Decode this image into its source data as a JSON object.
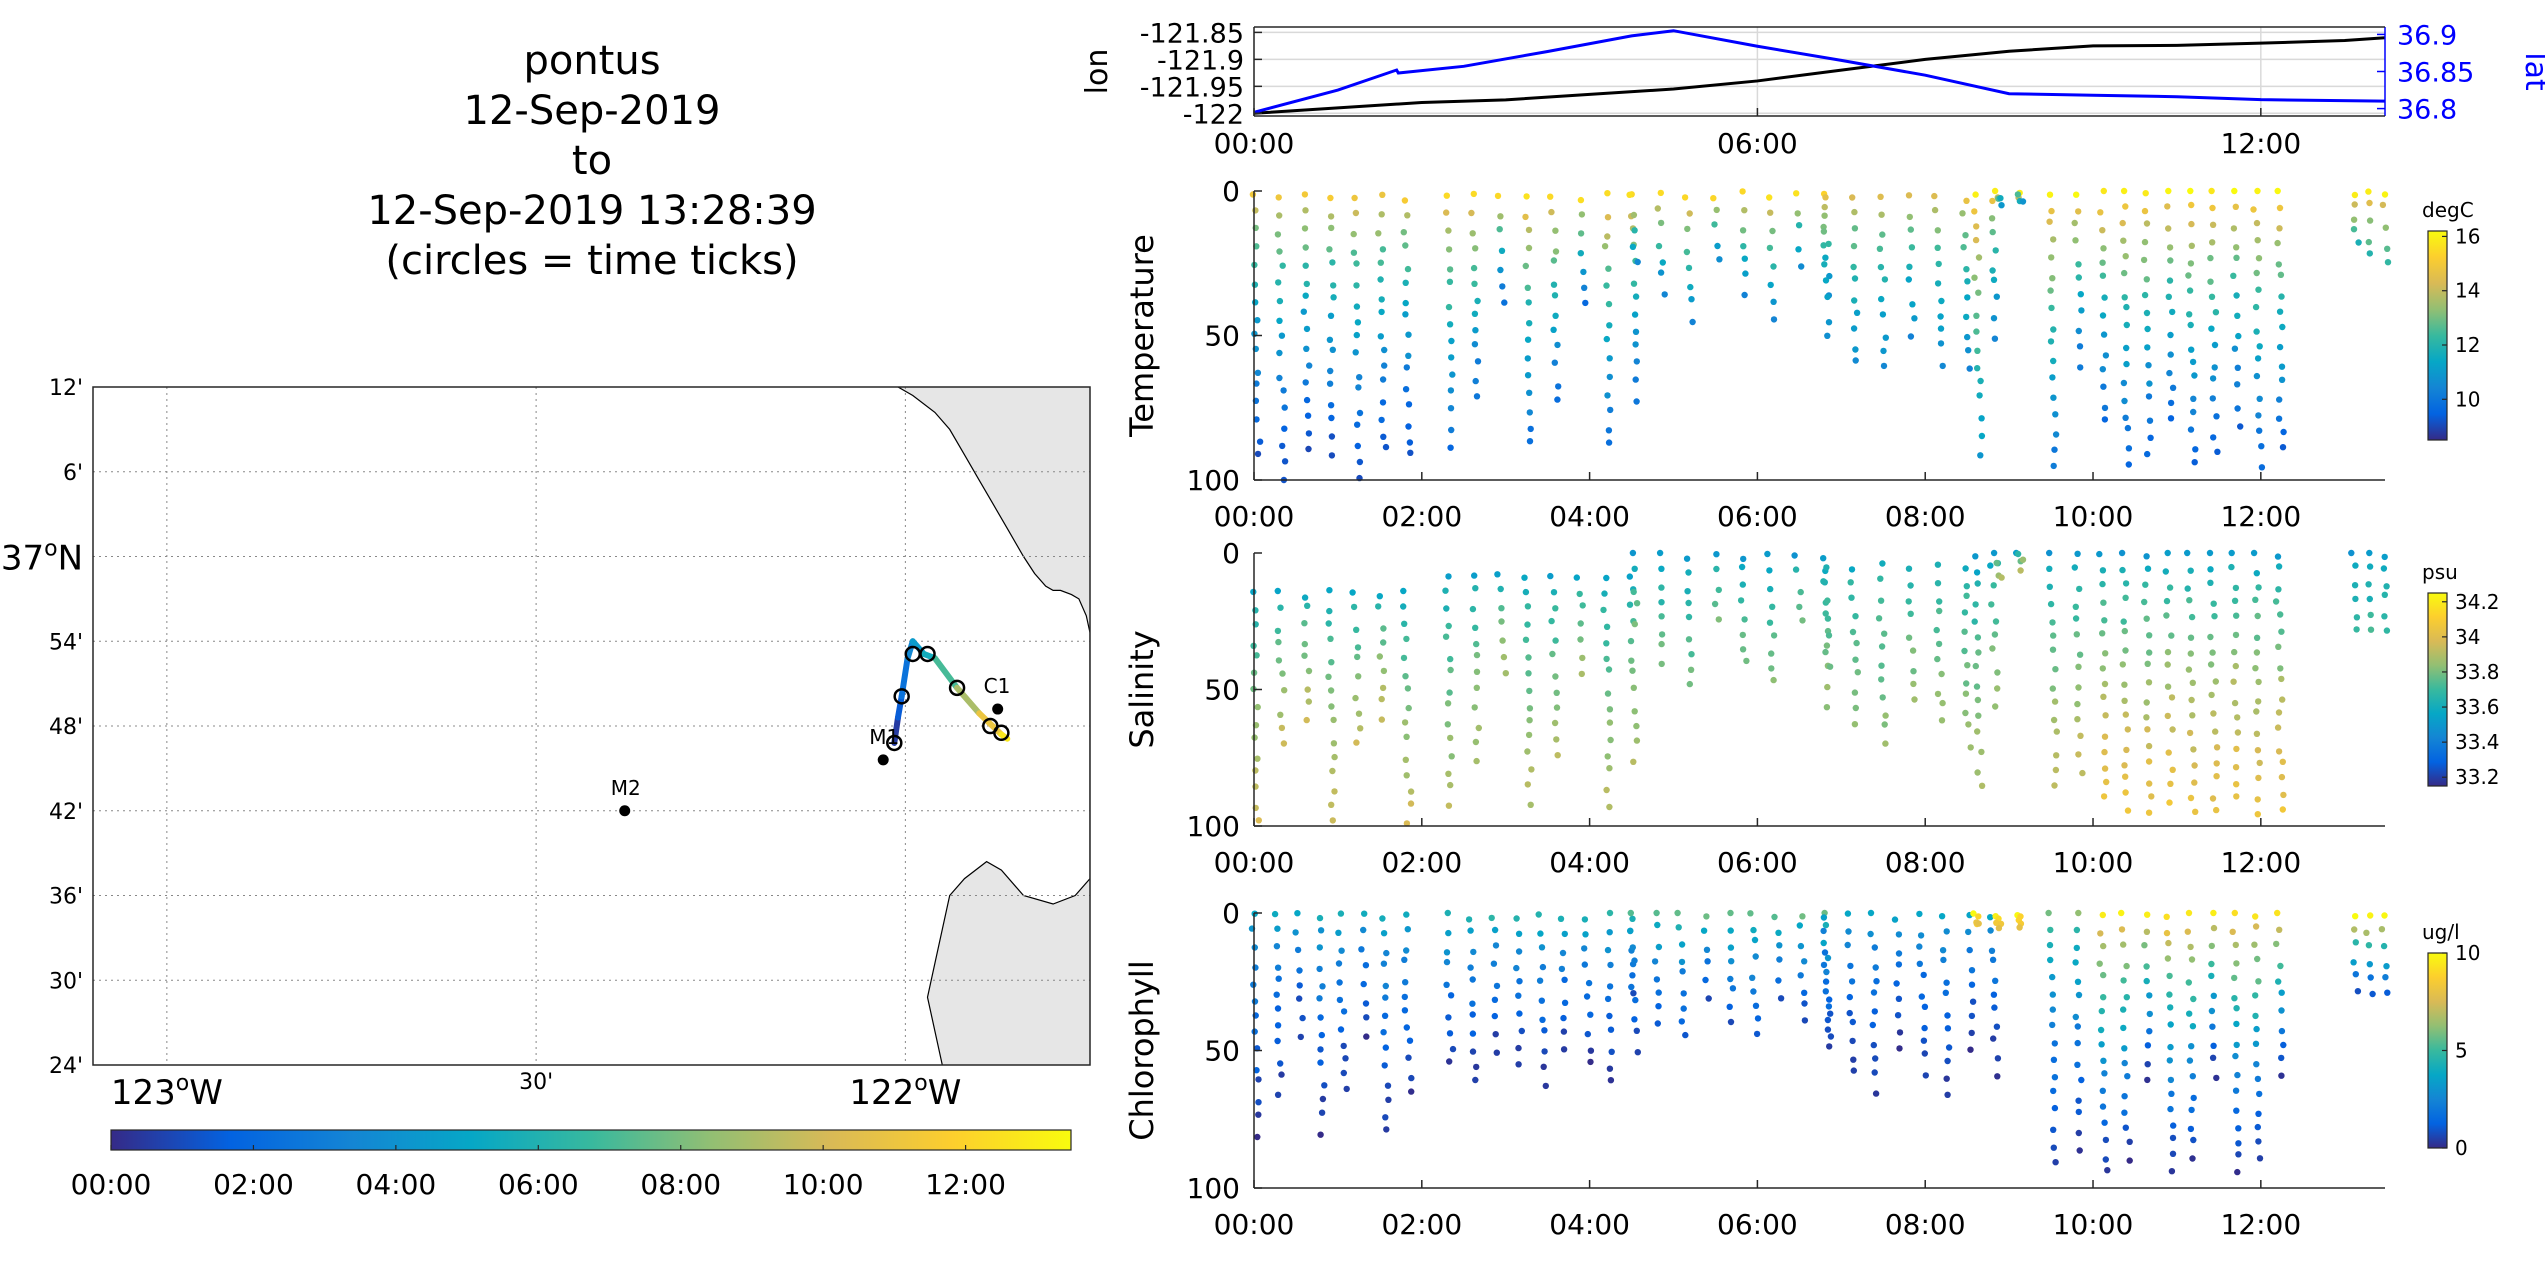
{
  "title_lines": [
    "pontus",
    "12-Sep-2019",
    "to",
    "12-Sep-2019 13:28:39",
    "(circles = time ticks)"
  ],
  "time_ticks": [
    "00:00",
    "02:00",
    "04:00",
    "06:00",
    "08:00",
    "10:00",
    "12:00"
  ],
  "time_ticks_top": [
    "00:00",
    "06:00",
    "12:00"
  ],
  "colors": {
    "axis": "#262626",
    "grid": "#d9d9d9",
    "land": "#e6e6e6",
    "lon_line": "#000000",
    "lat_line": "#0000ff",
    "parula": [
      "#352a87",
      "#0363e1",
      "#1485d4",
      "#06a7c6",
      "#38b99e",
      "#92bf73",
      "#d9ba56",
      "#fcce2e",
      "#f9fb0e"
    ]
  },
  "chart_data": [
    {
      "type": "line",
      "panel": "position",
      "x_range_hours": [
        0,
        13.48
      ],
      "xticks": [
        "00:00",
        "06:00",
        "12:00"
      ],
      "grid": true,
      "series": [
        {
          "axis": "left",
          "ylabel": "lon",
          "ylim": [
            -122.005,
            -121.84
          ],
          "yticks": [
            "-121.85",
            "-121.9",
            "-121.95",
            "-122"
          ],
          "x": [
            0,
            1,
            2,
            3,
            4,
            5,
            6,
            7,
            8,
            9,
            10,
            11,
            12,
            13,
            13.48
          ],
          "values": [
            -122.0,
            -121.99,
            -121.98,
            -121.975,
            -121.965,
            -121.955,
            -121.94,
            -121.92,
            -121.9,
            -121.885,
            -121.875,
            -121.874,
            -121.87,
            -121.865,
            -121.86
          ]
        },
        {
          "axis": "right",
          "ylabel": "lat",
          "ylim": [
            36.79,
            36.91
          ],
          "yticks": [
            "36.9",
            "36.85",
            "36.8"
          ],
          "x": [
            0,
            1,
            1.7,
            1.72,
            2.5,
            3.5,
            4.5,
            5.0,
            6.0,
            7.0,
            8.0,
            9.0,
            10.0,
            11.0,
            12.0,
            13.48
          ],
          "values": [
            36.795,
            36.825,
            36.852,
            36.848,
            36.857,
            36.877,
            36.898,
            36.905,
            36.884,
            36.865,
            36.845,
            36.82,
            36.818,
            36.816,
            36.812,
            36.81
          ]
        }
      ]
    },
    {
      "type": "scatter",
      "panel": "temperature",
      "ylabel": "Temperature",
      "ylim": [
        100,
        0
      ],
      "yticks": [
        "0",
        "50",
        "100"
      ],
      "x_range_hours": [
        0,
        13.48
      ],
      "xticks": [
        "00:00",
        "02:00",
        "04:00",
        "06:00",
        "08:00",
        "10:00",
        "12:00"
      ],
      "colorbar": {
        "label": "degC",
        "range": [
          8.5,
          16.2
        ],
        "ticks": [
          "16",
          "14",
          "12",
          "10"
        ],
        "tick_values": [
          16,
          14,
          12,
          10
        ]
      },
      "profiles": [
        {
          "t0": 0.0,
          "t1": 1.8,
          "n": 7,
          "z_top": 2,
          "z_bot": [
            92,
            100,
            90
          ],
          "c_top": 15.0,
          "c_bot": 9.0
        },
        {
          "t0": 2.3,
          "t1": 4.5,
          "n": 8,
          "z_top": 2,
          "z_bot": [
            88,
            72,
            40
          ],
          "c_top": 15.5,
          "c_bot": 9.8
        },
        {
          "t0": 4.5,
          "t1": 6.8,
          "n": 8,
          "z_top": 1,
          "z_bot": [
            25,
            35,
            45
          ],
          "c_top": 15.5,
          "c_bot": 10.5
        },
        {
          "t0": 6.8,
          "t1": 8.8,
          "n": 7,
          "z_top": 2,
          "z_bot": [
            50,
            60,
            62
          ],
          "c_top": 14.5,
          "c_bot": 10.5
        },
        {
          "t0": 8.6,
          "t1": 9.1,
          "n": 3,
          "z_top": 0,
          "z_bot": [
            90,
            5,
            5
          ],
          "c_top": 16.0,
          "c_bot": 11.0
        },
        {
          "t0": 9.5,
          "t1": 9.8,
          "n": 2,
          "z_top": 0,
          "z_bot": [
            95,
            60,
            90
          ],
          "c_top": 16.0,
          "c_bot": 10.0
        },
        {
          "t0": 10.1,
          "t1": 12.2,
          "n": 9,
          "z_top": 0,
          "z_bot": [
            80,
            95,
            90
          ],
          "c_top": 16.0,
          "c_bot": 9.5
        },
        {
          "t0": 13.1,
          "t1": 13.45,
          "n": 3,
          "z_top": 0,
          "z_bot": [
            18,
            22,
            25
          ],
          "c_top": 16.0,
          "c_bot": 12.0
        }
      ]
    },
    {
      "type": "scatter",
      "panel": "salinity",
      "ylabel": "Salinity",
      "ylim": [
        100,
        0
      ],
      "yticks": [
        "0",
        "50",
        "100"
      ],
      "x_range_hours": [
        0,
        13.48
      ],
      "xticks": [
        "00:00",
        "02:00",
        "04:00",
        "06:00",
        "08:00",
        "10:00",
        "12:00"
      ],
      "colorbar": {
        "label": "psu",
        "range": [
          33.15,
          34.25
        ],
        "ticks": [
          "34.2",
          "34",
          "33.8",
          "33.6",
          "33.4",
          "33.2"
        ],
        "tick_values": [
          34.2,
          34.0,
          33.8,
          33.6,
          33.4,
          33.2
        ]
      },
      "profiles": [
        {
          "t0": 0.0,
          "t1": 1.8,
          "n": 7,
          "z_top": 15,
          "z_bot": [
            98,
            70,
            60
          ],
          "c_top": 33.55,
          "c_bot": 33.95
        },
        {
          "t0": 2.3,
          "t1": 4.5,
          "n": 8,
          "z_top": 8,
          "z_bot": [
            92,
            75,
            45
          ],
          "c_top": 33.55,
          "c_bot": 33.9
        },
        {
          "t0": 4.5,
          "t1": 6.8,
          "n": 8,
          "z_top": 1,
          "z_bot": [
            25,
            40,
            48
          ],
          "c_top": 33.5,
          "c_bot": 33.8
        },
        {
          "t0": 6.8,
          "t1": 8.8,
          "n": 7,
          "z_top": 5,
          "z_bot": [
            55,
            62,
            70
          ],
          "c_top": 33.6,
          "c_bot": 33.85
        },
        {
          "t0": 8.6,
          "t1": 9.1,
          "n": 3,
          "z_top": 0,
          "z_bot": [
            85,
            10,
            5
          ],
          "c_top": 33.5,
          "c_bot": 33.9
        },
        {
          "t0": 9.5,
          "t1": 9.8,
          "n": 2,
          "z_top": 0,
          "z_bot": [
            85,
            80,
            85
          ],
          "c_top": 33.5,
          "c_bot": 33.95
        },
        {
          "t0": 10.1,
          "t1": 12.2,
          "n": 9,
          "z_top": 0,
          "z_bot": [
            90,
            95,
            95
          ],
          "c_top": 33.5,
          "c_bot": 34.05
        },
        {
          "t0": 13.1,
          "t1": 13.45,
          "n": 3,
          "z_top": 0,
          "z_bot": [
            28,
            28,
            28
          ],
          "c_top": 33.5,
          "c_bot": 33.7
        }
      ]
    },
    {
      "type": "scatter",
      "panel": "chlorophyll",
      "ylabel": "Chlorophyll",
      "ylim": [
        100,
        0
      ],
      "yticks": [
        "0",
        "50",
        "100"
      ],
      "x_range_hours": [
        0,
        13.48
      ],
      "xticks": [
        "00:00",
        "02:00",
        "04:00",
        "06:00",
        "08:00",
        "10:00",
        "12:00"
      ],
      "colorbar": {
        "label": "ug/l",
        "range": [
          0,
          10
        ],
        "ticks": [
          "10",
          "5",
          "0"
        ],
        "tick_values": [
          10,
          5,
          0
        ]
      },
      "profiles": [
        {
          "t0": 0.0,
          "t1": 1.8,
          "n": 8,
          "z_top": 1,
          "z_bot": [
            80,
            65,
            45
          ],
          "c_top": 4.0,
          "c_bot": 0.3
        },
        {
          "t0": 2.3,
          "t1": 4.5,
          "n": 9,
          "z_top": 1,
          "z_bot": [
            55,
            62,
            50
          ],
          "c_top": 4.5,
          "c_bot": 0.3
        },
        {
          "t0": 4.5,
          "t1": 6.8,
          "n": 9,
          "z_top": 0,
          "z_bot": [
            30,
            40,
            45
          ],
          "c_top": 5.5,
          "c_bot": 0.8
        },
        {
          "t0": 6.8,
          "t1": 8.8,
          "n": 8,
          "z_top": 1,
          "z_bot": [
            50,
            58,
            65
          ],
          "c_top": 3.5,
          "c_bot": 0.3
        },
        {
          "t0": 8.6,
          "t1": 9.1,
          "n": 3,
          "z_top": 0,
          "z_bot": [
            5,
            5,
            5
          ],
          "c_top": 10.0,
          "c_bot": 8.0
        },
        {
          "t0": 9.5,
          "t1": 9.8,
          "n": 2,
          "z_top": 0,
          "z_bot": [
            90,
            85,
            90
          ],
          "c_top": 6.0,
          "c_bot": 0.3
        },
        {
          "t0": 10.1,
          "t1": 12.2,
          "n": 9,
          "z_top": 0,
          "z_bot": [
            95,
            90,
            60
          ],
          "c_top": 9.5,
          "c_bot": 0.3
        },
        {
          "t0": 13.1,
          "t1": 13.45,
          "n": 3,
          "z_top": 0,
          "z_bot": [
            28,
            30,
            30
          ],
          "c_top": 10.0,
          "c_bot": 1.0
        }
      ]
    },
    {
      "type": "map",
      "panel": "track-map",
      "lon_range": [
        -123.1,
        -121.75
      ],
      "lat_range": [
        36.4,
        37.2
      ],
      "xticks": [
        {
          "lon": -123.0,
          "label_base": "123",
          "label_sup": "o",
          "label_suffix": "W"
        },
        {
          "lon": -122.5,
          "label_base": "30'",
          "label_sup": "",
          "label_suffix": ""
        },
        {
          "lon": -122.0,
          "label_base": "122",
          "label_sup": "o",
          "label_suffix": "W"
        }
      ],
      "yticks": [
        {
          "lat": 37.2,
          "label_base": "12'",
          "label_sup": "",
          "label_suffix": ""
        },
        {
          "lat": 37.1,
          "label_base": "6'",
          "label_sup": "",
          "label_suffix": ""
        },
        {
          "lat": 37.0,
          "label_base": "37",
          "label_sup": "o",
          "label_suffix": "N"
        },
        {
          "lat": 36.9,
          "label_base": "54'",
          "label_sup": "",
          "label_suffix": ""
        },
        {
          "lat": 36.8,
          "label_base": "48'",
          "label_sup": "",
          "label_suffix": ""
        },
        {
          "lat": 36.7,
          "label_base": "42'",
          "label_sup": "",
          "label_suffix": ""
        },
        {
          "lat": 36.6,
          "label_base": "36'",
          "label_sup": "",
          "label_suffix": ""
        },
        {
          "lat": 36.5,
          "label_base": "30'",
          "label_sup": "",
          "label_suffix": ""
        },
        {
          "lat": 36.4,
          "label_base": "24'",
          "label_sup": "",
          "label_suffix": ""
        }
      ],
      "coastline": [
        [
          -122.01,
          37.2
        ],
        [
          -121.99,
          37.19
        ],
        [
          -121.96,
          37.17
        ],
        [
          -121.94,
          37.15
        ],
        [
          -121.92,
          37.12
        ],
        [
          -121.9,
          37.09
        ],
        [
          -121.88,
          37.06
        ],
        [
          -121.86,
          37.03
        ],
        [
          -121.84,
          37.0
        ],
        [
          -121.825,
          36.98
        ],
        [
          -121.81,
          36.965
        ],
        [
          -121.8,
          36.96
        ],
        [
          -121.79,
          36.96
        ],
        [
          -121.775,
          36.955
        ],
        [
          -121.765,
          36.95
        ],
        [
          -121.755,
          36.93
        ],
        [
          -121.75,
          36.91
        ],
        [
          -121.75,
          36.62
        ],
        [
          -121.77,
          36.6
        ],
        [
          -121.8,
          36.59
        ],
        [
          -121.84,
          36.6
        ],
        [
          -121.87,
          36.63
        ],
        [
          -121.89,
          36.64
        ],
        [
          -121.92,
          36.62
        ],
        [
          -121.94,
          36.6
        ],
        [
          -121.95,
          36.56
        ],
        [
          -121.96,
          36.52
        ],
        [
          -121.97,
          36.48
        ],
        [
          -121.96,
          36.44
        ],
        [
          -121.95,
          36.4
        ]
      ],
      "land_east_lon": -121.75,
      "track": {
        "points": [
          [
            -122.015,
            36.78
          ],
          [
            -122.01,
            36.81
          ],
          [
            -122.005,
            36.835
          ],
          [
            -121.997,
            36.88
          ],
          [
            -121.99,
            36.9
          ],
          [
            -121.975,
            36.885
          ],
          [
            -121.96,
            36.88
          ],
          [
            -121.93,
            36.845
          ],
          [
            -121.9,
            36.815
          ],
          [
            -121.87,
            36.79
          ],
          [
            -121.862,
            36.785
          ]
        ],
        "hours": [
          0,
          1,
          2,
          3,
          4,
          5,
          6,
          8,
          10,
          12,
          13.48
        ]
      },
      "tick_circles": [
        [
          -122.015,
          36.78
        ],
        [
          -122.005,
          36.835
        ],
        [
          -121.99,
          36.885
        ],
        [
          -121.97,
          36.885
        ],
        [
          -121.93,
          36.845
        ],
        [
          -121.885,
          36.8
        ],
        [
          -121.87,
          36.792
        ]
      ],
      "moorings": [
        {
          "name": "M2",
          "lon": -122.38,
          "lat": 36.7
        },
        {
          "name": "M1",
          "lon": -122.03,
          "lat": 36.76
        },
        {
          "name": "C1",
          "lon": -121.875,
          "lat": 36.82
        }
      ]
    },
    {
      "type": "colorbar",
      "panel": "time-colorbar",
      "range_hours": [
        0,
        13.48
      ],
      "ticks": [
        "00:00",
        "02:00",
        "04:00",
        "06:00",
        "08:00",
        "10:00",
        "12:00"
      ]
    }
  ]
}
